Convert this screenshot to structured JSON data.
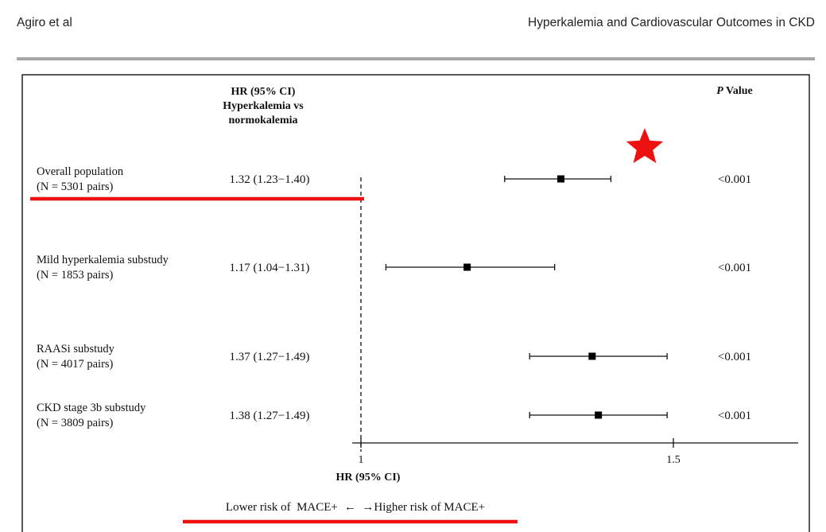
{
  "header": {
    "left": "Agiro et al",
    "right": "Hyperkalemia and Cardiovascular Outcomes in CKD"
  },
  "chart_data": {
    "type": "forest",
    "column_headers": {
      "hr": [
        "HR (95% CI)",
        "Hyperkalemia vs",
        "normokalemia"
      ],
      "p_italic": "P",
      "p_rest": " Value"
    },
    "rows": [
      {
        "label": "Overall population",
        "sublabel": "(N = 5301 pairs)",
        "hr_text": "1.32 (1.23−1.40)",
        "hr": 1.32,
        "ci_low": 1.23,
        "ci_high": 1.4,
        "p": "<0.001"
      },
      {
        "label": "Mild hyperkalemia substudy",
        "sublabel": "(N = 1853 pairs)",
        "hr_text": "1.17 (1.04−1.31)",
        "hr": 1.17,
        "ci_low": 1.04,
        "ci_high": 1.31,
        "p": "<0.001"
      },
      {
        "label": "RAASi substudy",
        "sublabel": "(N = 4017 pairs)",
        "hr_text": "1.37 (1.27−1.49)",
        "hr": 1.37,
        "ci_low": 1.27,
        "ci_high": 1.49,
        "p": "<0.001"
      },
      {
        "label": "CKD stage 3b substudy",
        "sublabel": "(N = 3809 pairs)",
        "hr_text": "1.38 (1.27−1.49)",
        "hr": 1.38,
        "ci_low": 1.27,
        "ci_high": 1.49,
        "p": "<0.001"
      }
    ],
    "x_ticks": [
      1,
      1.5
    ],
    "x_tick_labels": [
      "1",
      "1.5"
    ],
    "reference_line": 1,
    "xlabel": "HR (95% CI)",
    "direction_left": "Lower risk of  MACE+",
    "direction_arrows": "←  →",
    "direction_right": "Higher risk of MACE+",
    "highlight_row": 0,
    "annotation_color": "#ee1111"
  }
}
